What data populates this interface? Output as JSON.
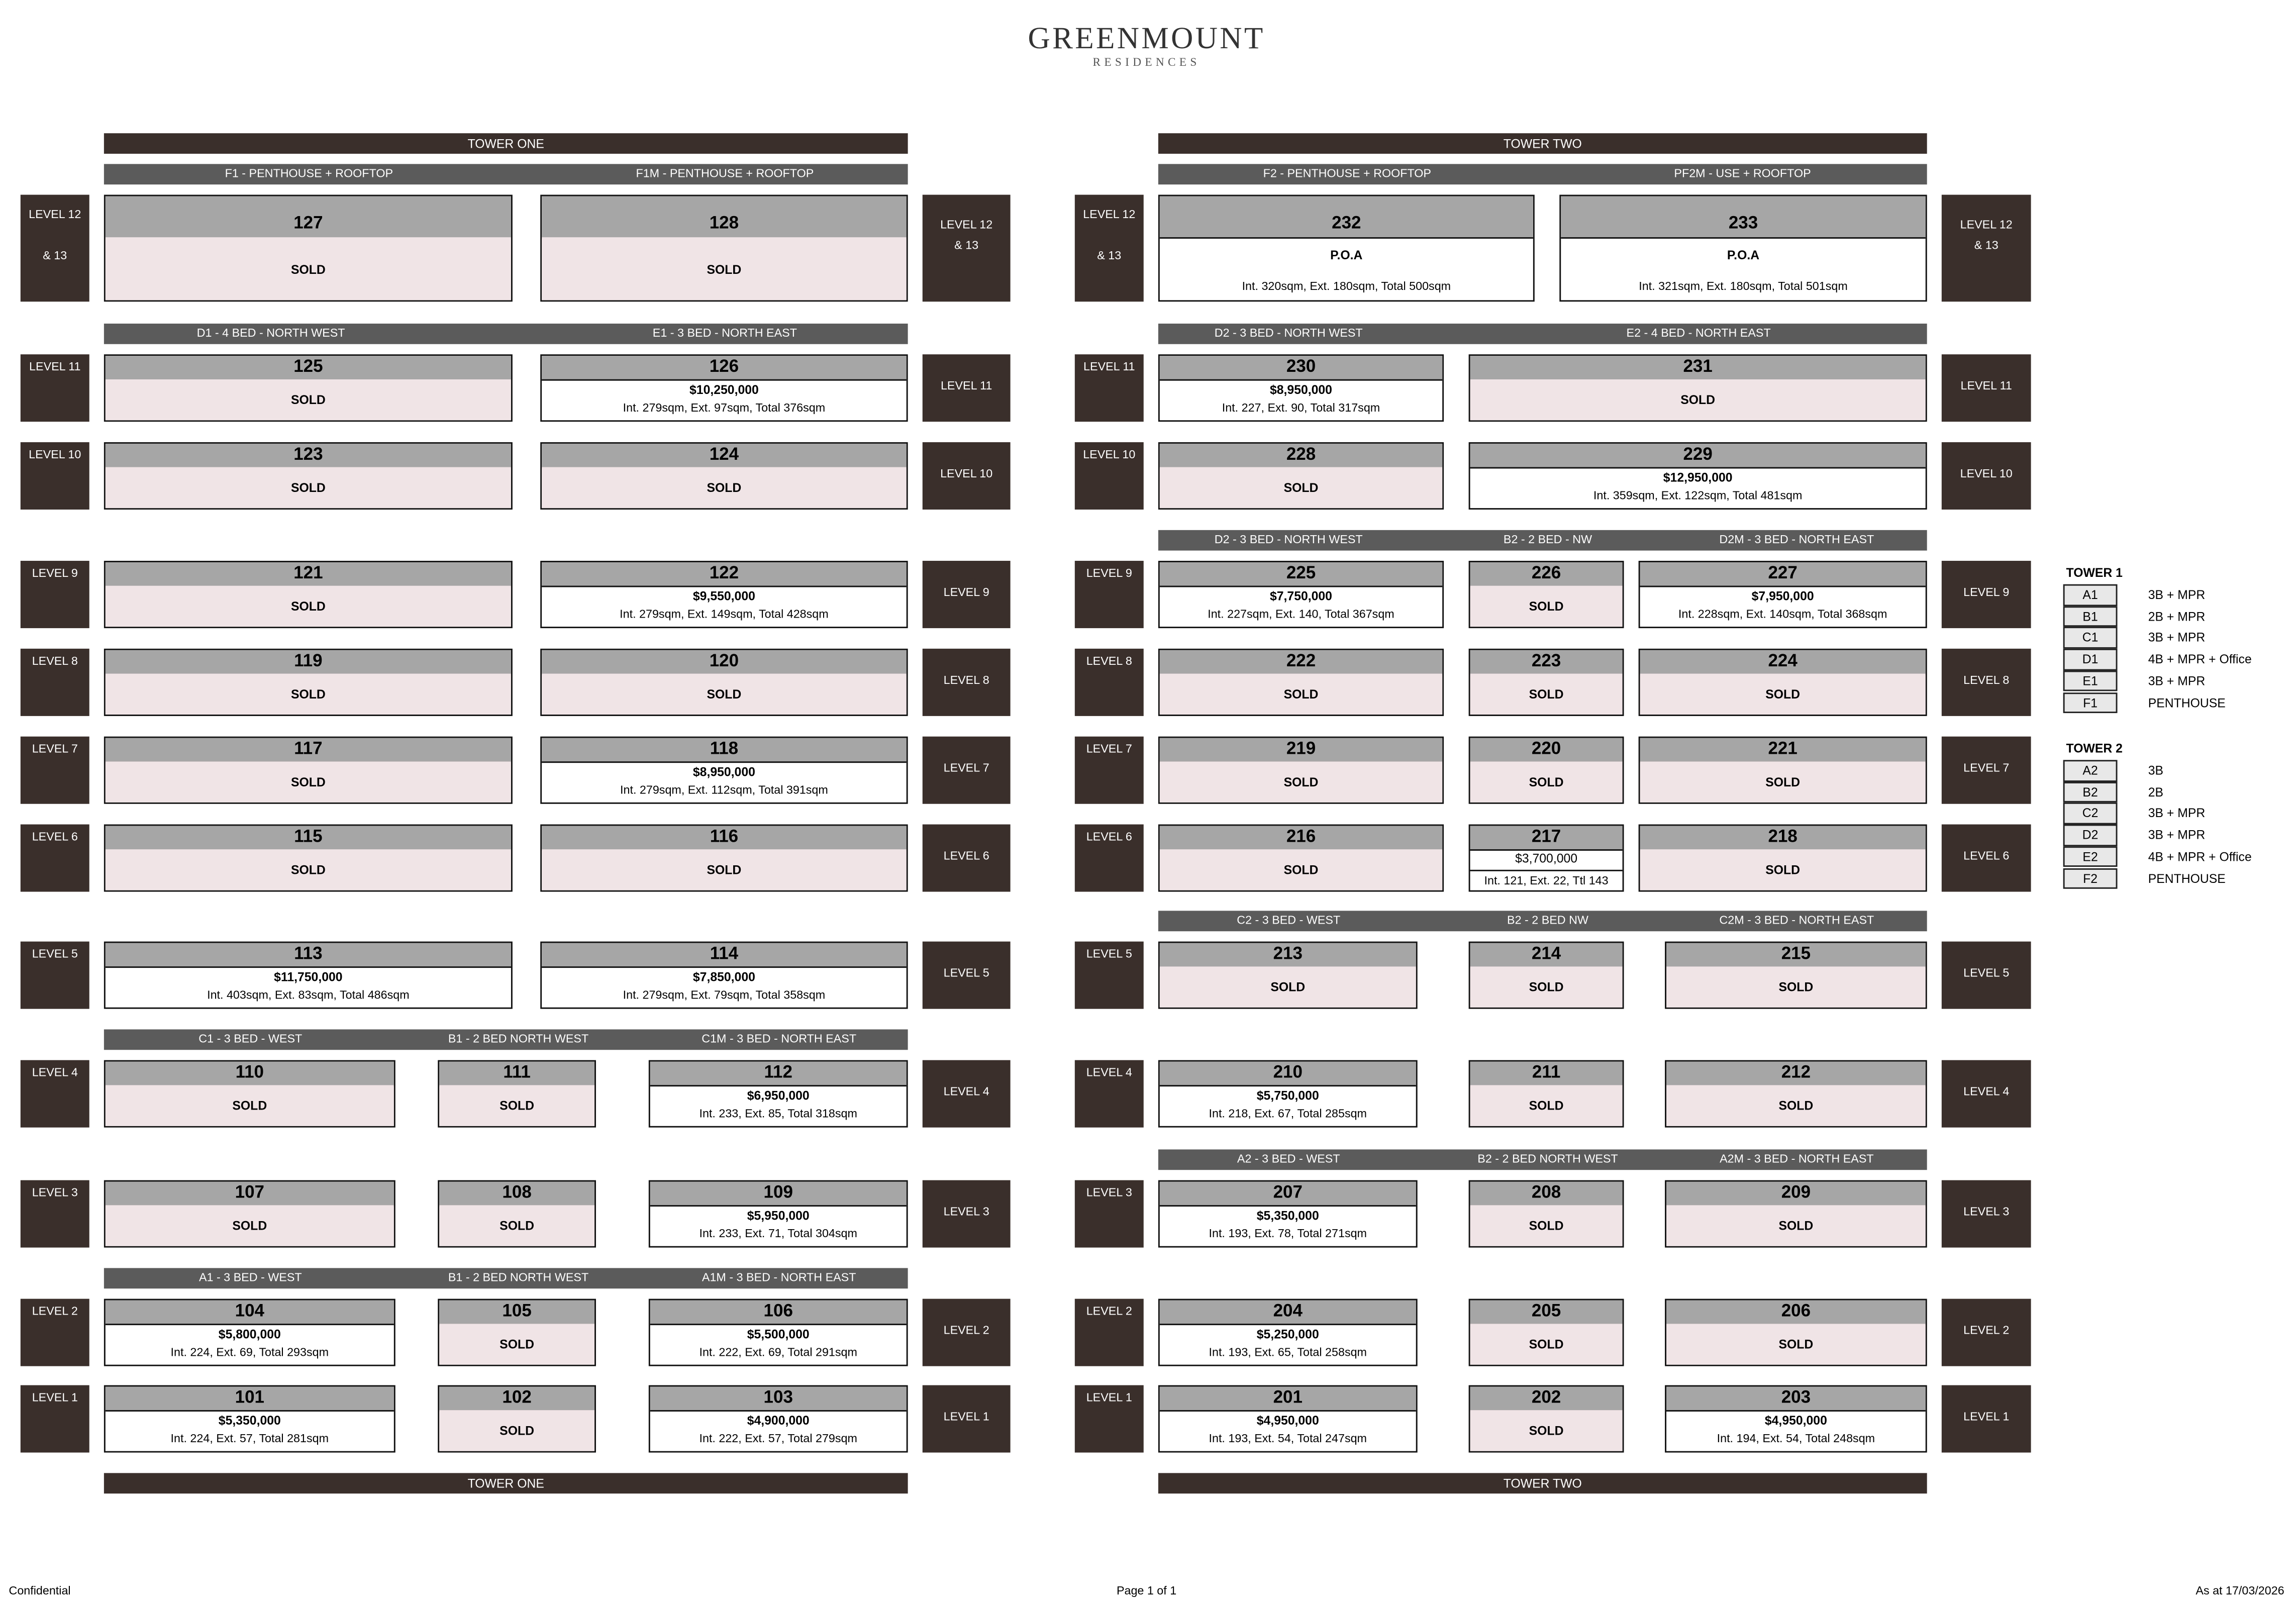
{
  "brand": {
    "name": "GREENMOUNT",
    "tagline": "RESIDENCES"
  },
  "colors": {
    "tower_bar": "#3a2f2b",
    "sub_header": "#5b5b5b",
    "unit_header": "#a6a6a6",
    "sold_fill": "#f0e4e6"
  },
  "towers": [
    {
      "title": "TOWER ONE",
      "subheaders": {
        "F": [
          "F1 - PENTHOUSE + ROOFTOP",
          "F1M - PENTHOUSE + ROOFTOP"
        ],
        "11": [
          "D1 - 4 BED - NORTH WEST",
          "E1 - 3 BED - NORTH EAST"
        ],
        "4": [
          "C1 - 3 BED - WEST",
          "B1 - 2 BED NORTH WEST",
          "C1M - 3 BED - NORTH EAST"
        ],
        "2": [
          "A1 - 3 BED - WEST",
          "B1 - 2 BED NORTH WEST",
          "A1M - 3 BED - NORTH EAST"
        ]
      },
      "levels": [
        {
          "key": "F",
          "label": "LEVEL 12",
          "label2": "& 13",
          "units": [
            {
              "no": "127",
              "status": "SOLD"
            },
            {
              "no": "128",
              "status": "SOLD"
            }
          ]
        },
        {
          "key": "11",
          "label": "LEVEL 11",
          "units": [
            {
              "no": "125",
              "status": "SOLD"
            },
            {
              "no": "126",
              "status": "$10,250,000",
              "detail": "Int. 279sqm, Ext. 97sqm, Total 376sqm"
            }
          ]
        },
        {
          "key": "10",
          "label": "LEVEL 10",
          "units": [
            {
              "no": "123",
              "status": "SOLD"
            },
            {
              "no": "124",
              "status": "SOLD"
            }
          ]
        },
        {
          "key": "9",
          "label": "LEVEL 9",
          "units": [
            {
              "no": "121",
              "status": "SOLD"
            },
            {
              "no": "122",
              "status": "$9,550,000",
              "detail": "Int. 279sqm, Ext. 149sqm, Total 428sqm"
            }
          ]
        },
        {
          "key": "8",
          "label": "LEVEL 8",
          "units": [
            {
              "no": "119",
              "status": "SOLD"
            },
            {
              "no": "120",
              "status": "SOLD"
            }
          ]
        },
        {
          "key": "7",
          "label": "LEVEL 7",
          "units": [
            {
              "no": "117",
              "status": "SOLD"
            },
            {
              "no": "118",
              "status": "$8,950,000",
              "detail": "Int. 279sqm, Ext. 112sqm, Total 391sqm"
            }
          ]
        },
        {
          "key": "6",
          "label": "LEVEL 6",
          "units": [
            {
              "no": "115",
              "status": "SOLD"
            },
            {
              "no": "116",
              "status": "SOLD"
            }
          ]
        },
        {
          "key": "5",
          "label": "LEVEL 5",
          "units": [
            {
              "no": "113",
              "status": "$11,750,000",
              "detail": "Int. 403sqm, Ext. 83sqm, Total 486sqm"
            },
            {
              "no": "114",
              "status": "$7,850,000",
              "detail": "Int. 279sqm, Ext. 79sqm, Total 358sqm"
            }
          ]
        },
        {
          "key": "4",
          "label": "LEVEL 4",
          "units": [
            {
              "no": "110",
              "status": "SOLD"
            },
            {
              "no": "111",
              "status": "SOLD"
            },
            {
              "no": "112",
              "status": "$6,950,000",
              "detail": "Int. 233, Ext. 85, Total 318sqm"
            }
          ]
        },
        {
          "key": "3",
          "label": "LEVEL 3",
          "units": [
            {
              "no": "107",
              "status": "SOLD"
            },
            {
              "no": "108",
              "status": "SOLD"
            },
            {
              "no": "109",
              "status": "$5,950,000",
              "detail": "Int. 233, Ext. 71, Total 304sqm"
            }
          ]
        },
        {
          "key": "2",
          "label": "LEVEL 2",
          "units": [
            {
              "no": "104",
              "status": "$5,800,000",
              "detail": "Int. 224, Ext. 69, Total 293sqm"
            },
            {
              "no": "105",
              "status": "SOLD"
            },
            {
              "no": "106",
              "status": "$5,500,000",
              "detail": "Int. 222, Ext. 69, Total 291sqm"
            }
          ]
        },
        {
          "key": "1",
          "label": "LEVEL 1",
          "units": [
            {
              "no": "101",
              "status": "$5,350,000",
              "detail": "Int. 224, Ext. 57, Total 281sqm"
            },
            {
              "no": "102",
              "status": "SOLD"
            },
            {
              "no": "103",
              "status": "$4,900,000",
              "detail": "Int. 222, Ext. 57, Total 279sqm"
            }
          ]
        }
      ]
    },
    {
      "title": "TOWER TWO",
      "subheaders": {
        "F": [
          "F2 - PENTHOUSE + ROOFTOP",
          "PF2M - USE + ROOFTOP"
        ],
        "11": [
          "D2 - 3 BED - NORTH WEST",
          "E2 - 4 BED - NORTH EAST"
        ],
        "9": [
          "D2 - 3 BED - NORTH WEST",
          "B2 - 2 BED - NW",
          "D2M - 3 BED - NORTH EAST"
        ],
        "5": [
          "C2 - 3 BED - WEST",
          "B2 - 2 BED NW",
          "C2M - 3 BED - NORTH EAST"
        ],
        "3": [
          "A2 - 3 BED - WEST",
          "B2 - 2 BED NORTH WEST",
          "A2M - 3 BED - NORTH EAST"
        ]
      },
      "levels": [
        {
          "key": "F",
          "label": "LEVEL 12",
          "label2": "& 13",
          "units": [
            {
              "no": "232",
              "status": "P.O.A",
              "detail": "Int. 320sqm, Ext. 180sqm, Total 500sqm"
            },
            {
              "no": "233",
              "status": "P.O.A",
              "detail": "Int. 321sqm, Ext. 180sqm, Total 501sqm"
            }
          ]
        },
        {
          "key": "11",
          "label": "LEVEL 11",
          "units": [
            {
              "no": "230",
              "status": "$8,950,000",
              "detail": "Int. 227, Ext. 90, Total 317sqm"
            },
            {
              "no": "231",
              "status": "SOLD"
            }
          ]
        },
        {
          "key": "10",
          "label": "LEVEL 10",
          "units": [
            {
              "no": "228",
              "status": "SOLD"
            },
            {
              "no": "229",
              "status": "$12,950,000",
              "detail": "Int. 359sqm, Ext. 122sqm, Total 481sqm"
            }
          ]
        },
        {
          "key": "9",
          "label": "LEVEL 9",
          "units": [
            {
              "no": "225",
              "status": "$7,750,000",
              "detail": "Int. 227sqm, Ext. 140, Total 367sqm"
            },
            {
              "no": "226",
              "status": "SOLD"
            },
            {
              "no": "227",
              "status": "$7,950,000",
              "detail": "Int. 228sqm, Ext. 140sqm, Total 368sqm"
            }
          ]
        },
        {
          "key": "8",
          "label": "LEVEL 8",
          "units": [
            {
              "no": "222",
              "status": "SOLD"
            },
            {
              "no": "223",
              "status": "SOLD"
            },
            {
              "no": "224",
              "status": "SOLD"
            }
          ]
        },
        {
          "key": "7",
          "label": "LEVEL 7",
          "units": [
            {
              "no": "219",
              "status": "SOLD"
            },
            {
              "no": "220",
              "status": "SOLD"
            },
            {
              "no": "221",
              "status": "SOLD"
            }
          ]
        },
        {
          "key": "6",
          "label": "LEVEL 6",
          "units": [
            {
              "no": "216",
              "status": "SOLD"
            },
            {
              "no": "217",
              "status": "$3,700,000",
              "detail": "Int. 121, Ext. 22, Ttl 143",
              "split": true
            },
            {
              "no": "218",
              "status": "SOLD"
            }
          ]
        },
        {
          "key": "5",
          "label": "LEVEL 5",
          "units": [
            {
              "no": "213",
              "status": "SOLD"
            },
            {
              "no": "214",
              "status": "SOLD"
            },
            {
              "no": "215",
              "status": "SOLD"
            }
          ]
        },
        {
          "key": "4",
          "label": "LEVEL 4",
          "units": [
            {
              "no": "210",
              "status": "$5,750,000",
              "detail": "Int. 218, Ext. 67, Total 285sqm"
            },
            {
              "no": "211",
              "status": "SOLD"
            },
            {
              "no": "212",
              "status": "SOLD"
            }
          ]
        },
        {
          "key": "3",
          "label": "LEVEL 3",
          "units": [
            {
              "no": "207",
              "status": "$5,350,000",
              "detail": "Int. 193, Ext. 78, Total 271sqm"
            },
            {
              "no": "208",
              "status": "SOLD"
            },
            {
              "no": "209",
              "status": "SOLD"
            }
          ]
        },
        {
          "key": "2",
          "label": "LEVEL 2",
          "units": [
            {
              "no": "204",
              "status": "$5,250,000",
              "detail": "Int. 193, Ext. 65, Total 258sqm"
            },
            {
              "no": "205",
              "status": "SOLD"
            },
            {
              "no": "206",
              "status": "SOLD"
            }
          ]
        },
        {
          "key": "1",
          "label": "LEVEL 1",
          "units": [
            {
              "no": "201",
              "status": "$4,950,000",
              "detail": "Int. 193, Ext. 54, Total 247sqm"
            },
            {
              "no": "202",
              "status": "SOLD"
            },
            {
              "no": "203",
              "status": "$4,950,000",
              "detail": "Int. 194, Ext. 54, Total 248sqm"
            }
          ]
        }
      ]
    }
  ],
  "legend": [
    {
      "title": "TOWER 1",
      "items": [
        {
          "code": "A1",
          "desc": "3B + MPR"
        },
        {
          "code": "B1",
          "desc": "2B + MPR"
        },
        {
          "code": "C1",
          "desc": "3B + MPR"
        },
        {
          "code": "D1",
          "desc": "4B + MPR + Office"
        },
        {
          "code": "E1",
          "desc": "3B +  MPR"
        },
        {
          "code": "F1",
          "desc": "PENTHOUSE"
        }
      ]
    },
    {
      "title": "TOWER 2",
      "items": [
        {
          "code": "A2",
          "desc": "3B"
        },
        {
          "code": "B2",
          "desc": "2B"
        },
        {
          "code": "C2",
          "desc": "3B + MPR"
        },
        {
          "code": "D2",
          "desc": "3B + MPR"
        },
        {
          "code": "E2",
          "desc": "4B + MPR + Office"
        },
        {
          "code": "F2",
          "desc": "PENTHOUSE"
        }
      ]
    }
  ],
  "footer": {
    "left": "Confidential",
    "center": "Page 1 of 1",
    "right": "As at 17/03/2026"
  }
}
